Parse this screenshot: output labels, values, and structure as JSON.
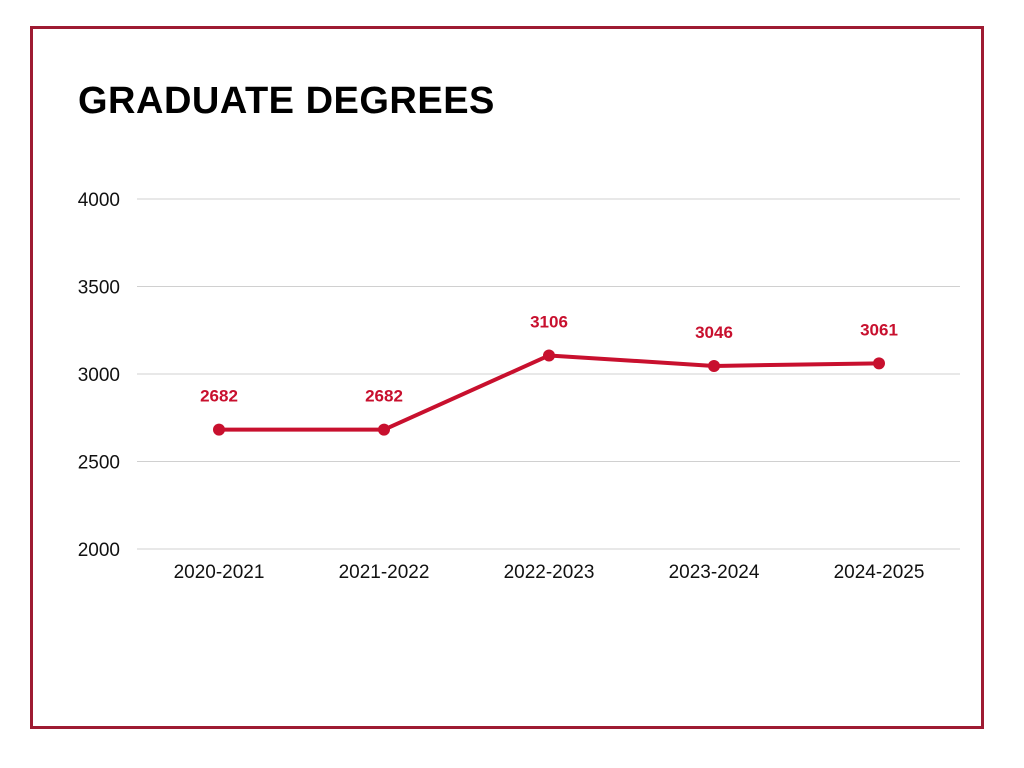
{
  "chart_data": {
    "type": "line",
    "title": "GRADUATE DEGREES",
    "categories": [
      "2020-2021",
      "2021-2022",
      "2022-2023",
      "2023-2024",
      "2024-2025"
    ],
    "series": [
      {
        "values": [
          2682,
          2682,
          3106,
          3046,
          3061
        ],
        "color": "#c8102e"
      }
    ],
    "data_labels": [
      "2682",
      "2682",
      "3106",
      "3046",
      "3061"
    ],
    "yticks": [
      "2000",
      "2500",
      "3000",
      "3500",
      "4000"
    ],
    "ylim": [
      2000,
      4000
    ],
    "grid": true,
    "legend": "none",
    "frame_color": "#9e1b32"
  }
}
